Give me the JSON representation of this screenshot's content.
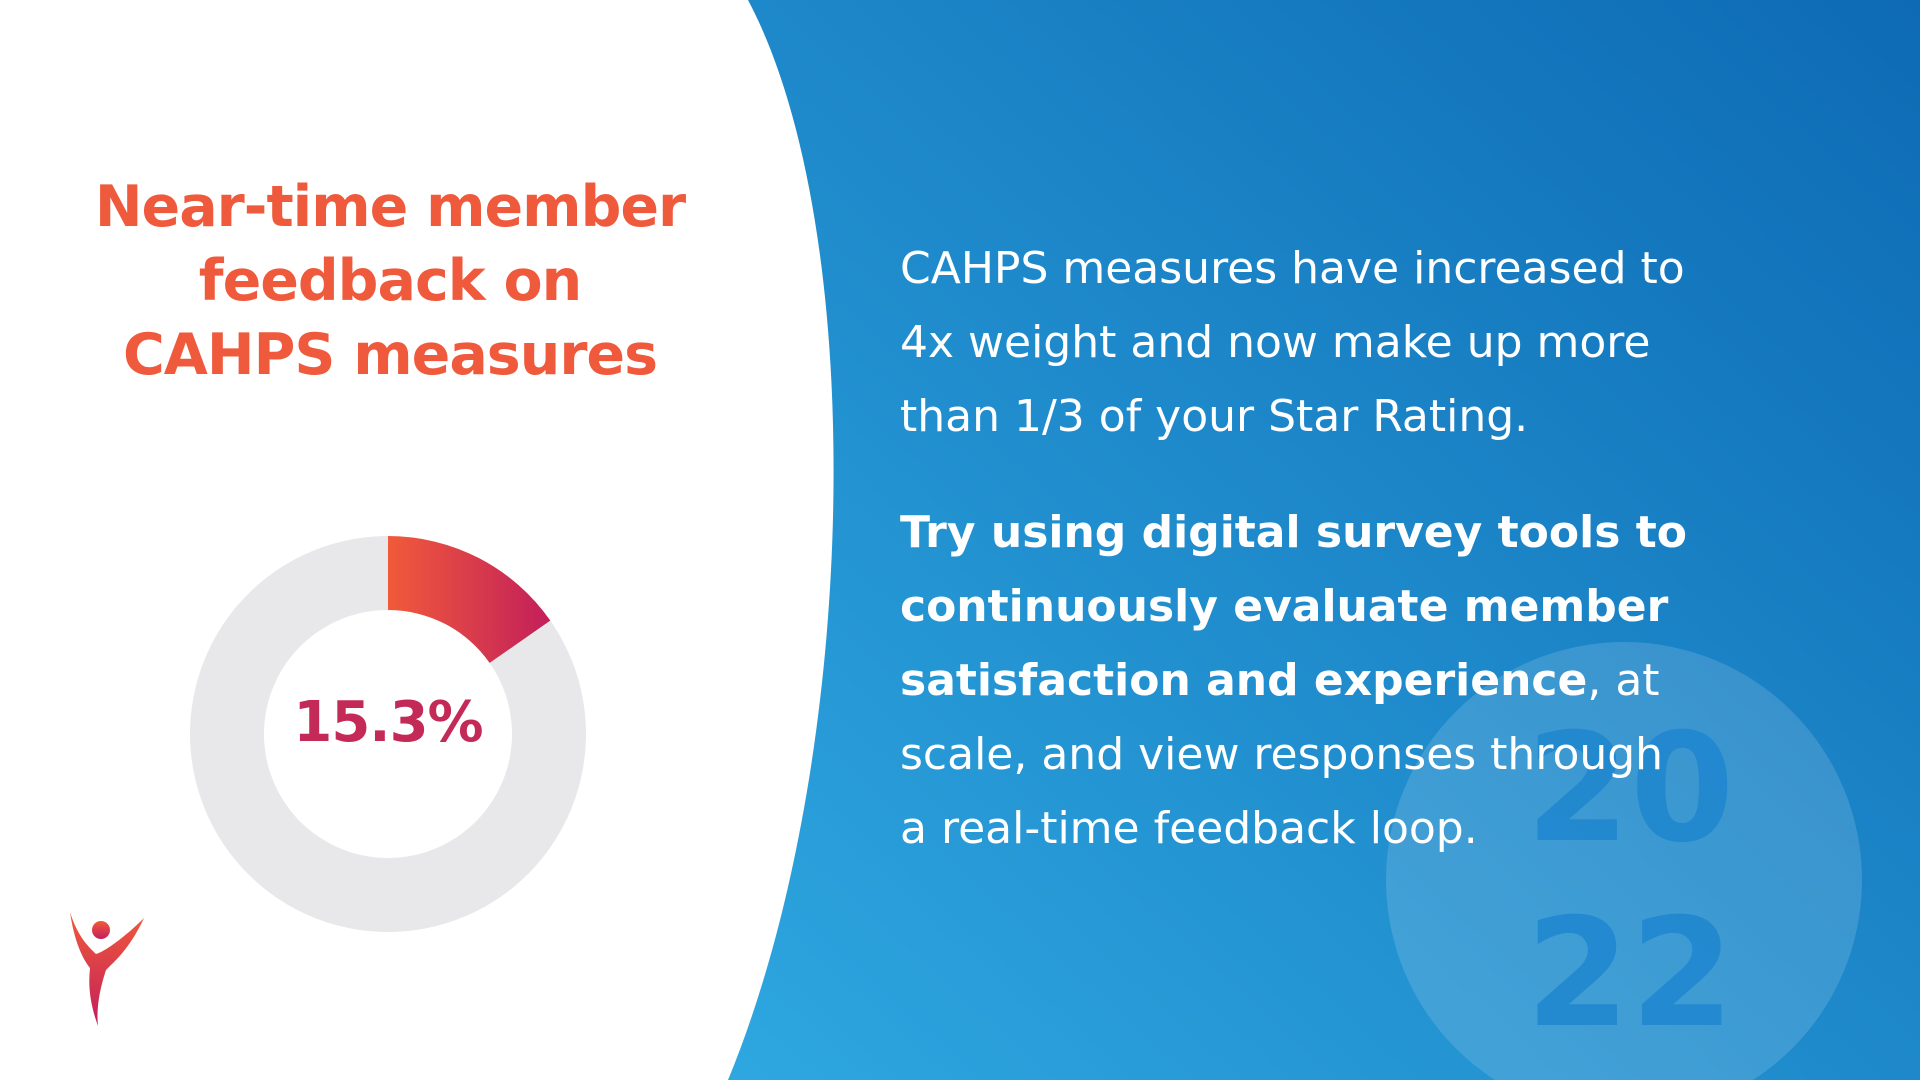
{
  "heading": {
    "lines": [
      "Near-time member",
      "feedback on",
      "CAHPS measures"
    ]
  },
  "chart_data": {
    "type": "pie",
    "variant": "donut",
    "values": [
      15.3,
      84.7
    ],
    "labels": [
      "15.3%",
      ""
    ],
    "center_label": "15.3%",
    "colors": {
      "highlight_start": "#f15a3a",
      "highlight_end": "#c21f5b",
      "remainder": "#e8e8ea"
    }
  },
  "body": {
    "para1": [
      "CAHPS measures have increased to",
      "4x weight and now make up more",
      "than 1/3 of your Star Rating."
    ],
    "para2": {
      "bold_lines": [
        "Try using digital survey tools to",
        "continuously evaluate member",
        "satisfaction and experience"
      ],
      "tail_on_bold_line": ", at",
      "rest_lines": [
        "scale, and view responses through",
        "a real-time feedback loop."
      ]
    }
  },
  "watermark": {
    "top": "20",
    "bottom": "22"
  },
  "colors": {
    "accent": "#ef5a3c",
    "panel_blue_light": "#2ea7e0",
    "panel_blue_dark": "#0d6ab4",
    "background": "#ffffff"
  },
  "logo": {
    "icon": "figure-v-logo-icon"
  }
}
